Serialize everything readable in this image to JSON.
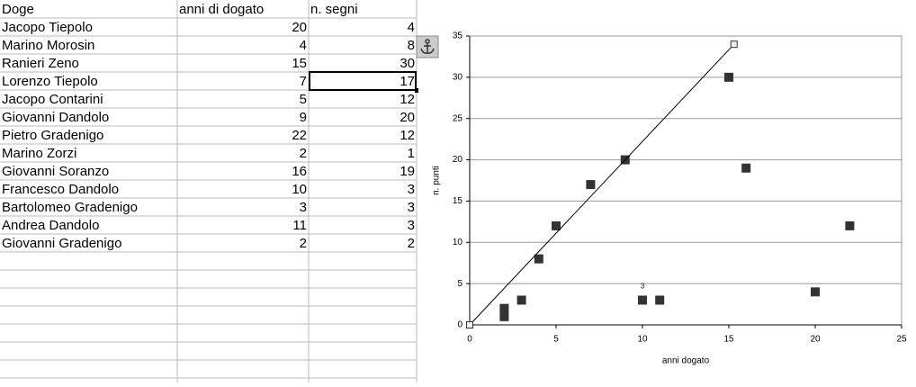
{
  "table": {
    "columns": [
      "Doge",
      "anni di dogato",
      "n. segni"
    ],
    "rows": [
      [
        "Jacopo Tiepolo",
        20,
        4
      ],
      [
        "Marino Morosin",
        4,
        8
      ],
      [
        "Ranieri Zeno",
        15,
        30
      ],
      [
        "Lorenzo Tiepolo",
        7,
        17
      ],
      [
        "Jacopo Contarini",
        5,
        12
      ],
      [
        "Giovanni Dandolo",
        9,
        20
      ],
      [
        "Pietro Gradenigo",
        22,
        12
      ],
      [
        "Marino Zorzi",
        2,
        1
      ],
      [
        "Giovanni Soranzo",
        16,
        19
      ],
      [
        "Francesco Dandolo",
        10,
        3
      ],
      [
        "Bartolomeo Gradenigo",
        3,
        3
      ],
      [
        "Andrea Dandolo",
        11,
        3
      ],
      [
        "Giovanni Gradenigo",
        2,
        2
      ]
    ]
  },
  "chart_data": {
    "type": "scatter",
    "xlabel": "anni dogato",
    "ylabel": "n. punti",
    "xlim": [
      0,
      25
    ],
    "ylim": [
      0,
      35
    ],
    "xticks": [
      0,
      5,
      10,
      15,
      20,
      25
    ],
    "yticks": [
      0,
      5,
      10,
      15,
      20,
      25,
      30,
      35
    ],
    "grid": true,
    "series": [
      {
        "color": "#333333",
        "x": [
          20,
          4,
          15,
          7,
          5,
          9,
          22,
          2,
          16,
          10,
          3,
          11,
          2
        ],
        "values": [
          4,
          8,
          30,
          17,
          12,
          20,
          12,
          1,
          19,
          3,
          3,
          3,
          2
        ],
        "value_labels": [
          null,
          null,
          null,
          null,
          null,
          null,
          null,
          null,
          null,
          "3",
          null,
          null,
          null
        ]
      },
      {
        "color": "#000000",
        "line": true,
        "x": [
          0,
          15.3
        ],
        "values": [
          0,
          34
        ]
      }
    ]
  }
}
